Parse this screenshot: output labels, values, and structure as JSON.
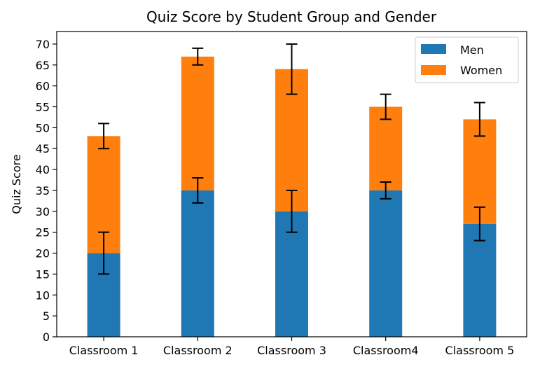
{
  "chart_data": {
    "type": "bar",
    "stacked": true,
    "title": "Quiz Score by Student Group and Gender",
    "xlabel": "",
    "ylabel": "Quiz Score",
    "categories": [
      "Classroom 1",
      "Classroom 2",
      "Classroom 3",
      "Classroom4",
      "Classroom 5"
    ],
    "series": [
      {
        "name": "Men",
        "values": [
          20,
          35,
          30,
          35,
          27
        ],
        "errors": [
          5,
          3,
          5,
          2,
          4
        ],
        "color": "#1f77b4"
      },
      {
        "name": "Women",
        "values": [
          28,
          32,
          34,
          20,
          25
        ],
        "errors": [
          3,
          2,
          6,
          3,
          4
        ],
        "color": "#ff7f0e"
      }
    ],
    "ylim": [
      0,
      73
    ],
    "yticks": [
      0,
      5,
      10,
      15,
      20,
      25,
      30,
      35,
      40,
      45,
      50,
      55,
      60,
      65,
      70
    ],
    "grid": false,
    "legend_position": "upper right"
  }
}
